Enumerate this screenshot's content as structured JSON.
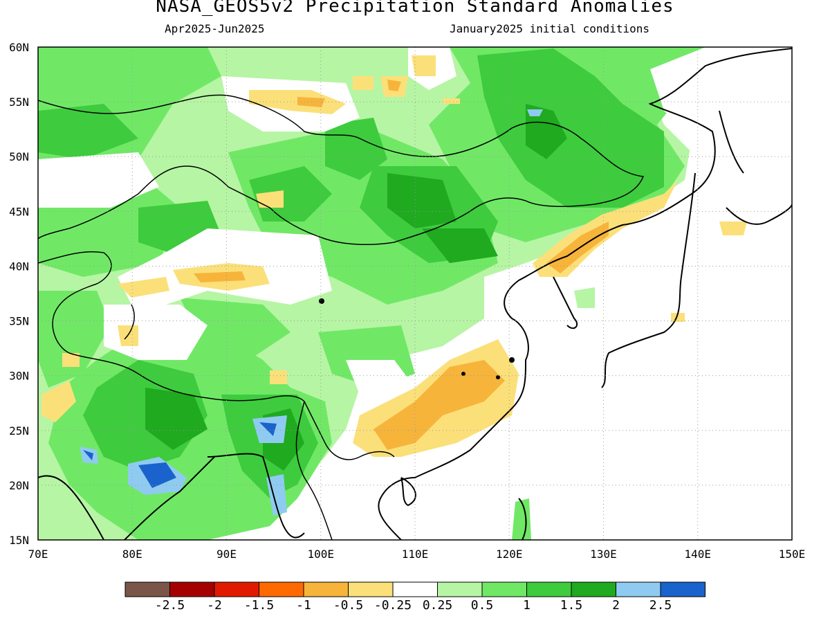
{
  "title": "NASA_GEOS5v2 Precipitation Standard Anomalies",
  "period": "Apr2025-Jun2025",
  "init": "January2025 initial conditions",
  "x_ticks": [
    "70E",
    "80E",
    "90E",
    "100E",
    "110E",
    "120E",
    "130E",
    "140E",
    "150E"
  ],
  "y_ticks": [
    "60N",
    "55N",
    "50N",
    "45N",
    "40N",
    "35N",
    "30N",
    "25N",
    "20N",
    "15N"
  ],
  "colorbar": {
    "colors": [
      "#7a5548",
      "#a50000",
      "#e01a00",
      "#ff6a00",
      "#f7b43b",
      "#fbe07a",
      "#ffffff",
      "#b6f5a4",
      "#70e866",
      "#3ecb3e",
      "#1faa1f",
      "#8fcbf0",
      "#1a63cc"
    ],
    "labels": [
      "-2.5",
      "-2",
      "-1.5",
      "-1",
      "-0.5",
      "-0.25",
      "0.25",
      "0.5",
      "1",
      "1.5",
      "2",
      "2.5"
    ]
  }
}
